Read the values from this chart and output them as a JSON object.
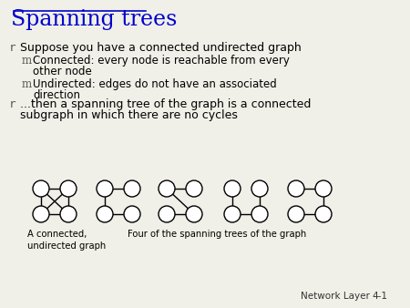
{
  "title": "Spanning trees",
  "title_color": "#0000CC",
  "background_color": "#F0F0E8",
  "bullet1": "Suppose you have a connected undirected graph",
  "sub1a": "Connected: every node is reachable from every",
  "sub1b": "other node",
  "sub2a": "Undirected: edges do not have an associated",
  "sub2b": "direction",
  "bullet2a": "...then a spanning tree of the graph is a connected",
  "bullet2b": "subgraph in which there are no cycles",
  "label1": "A connected,\nundirected graph",
  "label2": "Four of the spanning trees of the graph",
  "footer": "Network Layer",
  "footer_num": "4-1",
  "text_color": "#000000",
  "node_color": "#FFFFFF",
  "node_edge_color": "#000000",
  "edge_color": "#000000",
  "bullet_color": "#555555"
}
